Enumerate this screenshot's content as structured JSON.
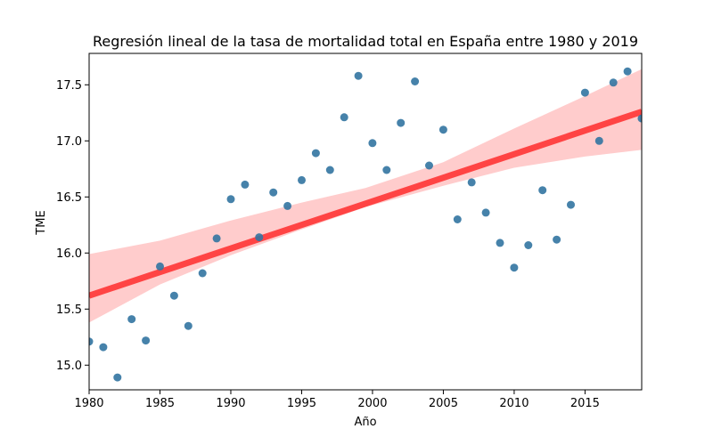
{
  "chart_data": {
    "type": "scatter",
    "title": "Regresión lineal de la tasa de mortalidad total en España entre 1980 y 2019",
    "xlabel": "Año",
    "ylabel": "TME",
    "xlim": [
      1980,
      2019
    ],
    "ylim": [
      14.78,
      17.78
    ],
    "xticks": [
      1980,
      1985,
      1990,
      1995,
      2000,
      2005,
      2010,
      2015
    ],
    "xtick_labels": [
      "1980",
      "1985",
      "1990",
      "1995",
      "2000",
      "2005",
      "2010",
      "2015"
    ],
    "yticks": [
      15.0,
      15.5,
      16.0,
      16.5,
      17.0,
      17.5
    ],
    "ytick_labels": [
      "15.0",
      "15.5",
      "16.0",
      "16.5",
      "17.0",
      "17.5"
    ],
    "grid": false,
    "points": {
      "x": [
        1980,
        1981,
        1982,
        1983,
        1984,
        1985,
        1986,
        1987,
        1988,
        1989,
        1990,
        1991,
        1992,
        1993,
        1994,
        1995,
        1996,
        1997,
        1998,
        1999,
        2000,
        2001,
        2002,
        2003,
        2004,
        2005,
        2006,
        2007,
        2008,
        2009,
        2010,
        2011,
        2012,
        2013,
        2014,
        2015,
        2016,
        2017,
        2018,
        2019
      ],
      "y": [
        15.21,
        15.16,
        14.89,
        15.41,
        15.22,
        15.88,
        15.62,
        15.35,
        15.82,
        16.13,
        16.48,
        16.61,
        16.14,
        16.54,
        16.42,
        16.65,
        16.89,
        16.74,
        17.21,
        17.58,
        16.98,
        16.74,
        17.16,
        17.53,
        16.78,
        17.1,
        16.3,
        16.63,
        16.36,
        16.09,
        15.87,
        16.07,
        16.56,
        16.12,
        16.43,
        17.43,
        17.0,
        17.52,
        17.62,
        17.2
      ],
      "color": "#3274a1"
    },
    "regression": {
      "start": [
        1980,
        15.62
      ],
      "end": [
        2019,
        17.26
      ],
      "color": "#ff4444"
    },
    "confidence_band": {
      "x": [
        1980,
        1985,
        1990,
        1995,
        1999.5,
        2005,
        2010,
        2015,
        2019
      ],
      "lower": [
        15.38,
        15.72,
        15.98,
        16.21,
        16.41,
        16.6,
        16.76,
        16.86,
        16.92
      ],
      "upper": [
        15.99,
        16.11,
        16.29,
        16.45,
        16.58,
        16.81,
        17.11,
        17.4,
        17.64
      ],
      "color": "#ffcccc"
    }
  }
}
